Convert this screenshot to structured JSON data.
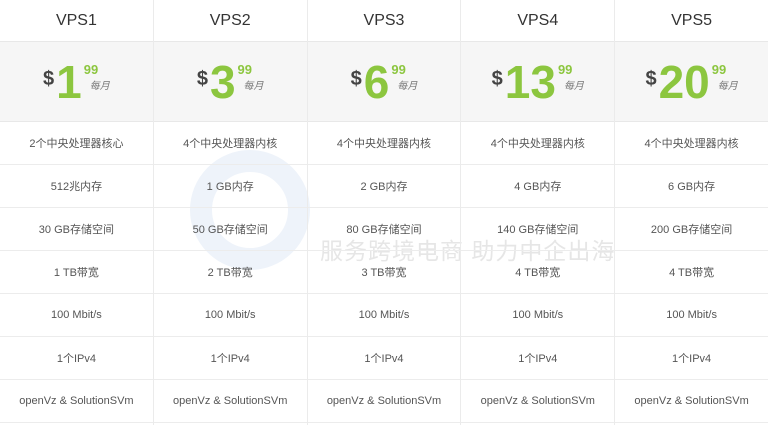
{
  "watermark": {
    "subtitle": "服务跨境电商 助力中企出海"
  },
  "colors": {
    "accent": "#8cc63f"
  },
  "currency": "$",
  "period": "每月",
  "plans": [
    {
      "name": "VPS1",
      "dollars": "1",
      "cents": "99",
      "features": [
        "2个中央处理器核心",
        "512兆内存",
        "30 GB存储空间",
        "1 TB带宽",
        "100 Mbit/s",
        "1个IPv4",
        "openVz & SolutionSVm"
      ]
    },
    {
      "name": "VPS2",
      "dollars": "3",
      "cents": "99",
      "features": [
        "4个中央处理器内核",
        "1 GB内存",
        "50 GB存储空间",
        "2 TB带宽",
        "100 Mbit/s",
        "1个IPv4",
        "openVz & SolutionSVm"
      ]
    },
    {
      "name": "VPS3",
      "dollars": "6",
      "cents": "99",
      "features": [
        "4个中央处理器内核",
        "2 GB内存",
        "80 GB存储空间",
        "3 TB带宽",
        "100 Mbit/s",
        "1个IPv4",
        "openVz & SolutionSVm"
      ]
    },
    {
      "name": "VPS4",
      "dollars": "13",
      "cents": "99",
      "features": [
        "4个中央处理器内核",
        "4 GB内存",
        "140 GB存储空间",
        "4 TB带宽",
        "100 Mbit/s",
        "1个IPv4",
        "openVz & SolutionSVm"
      ]
    },
    {
      "name": "VPS5",
      "dollars": "20",
      "cents": "99",
      "features": [
        "4个中央处理器内核",
        "6 GB内存",
        "200 GB存储空间",
        "4 TB带宽",
        "100 Mbit/s",
        "1个IPv4",
        "openVz & SolutionSVm"
      ]
    }
  ]
}
